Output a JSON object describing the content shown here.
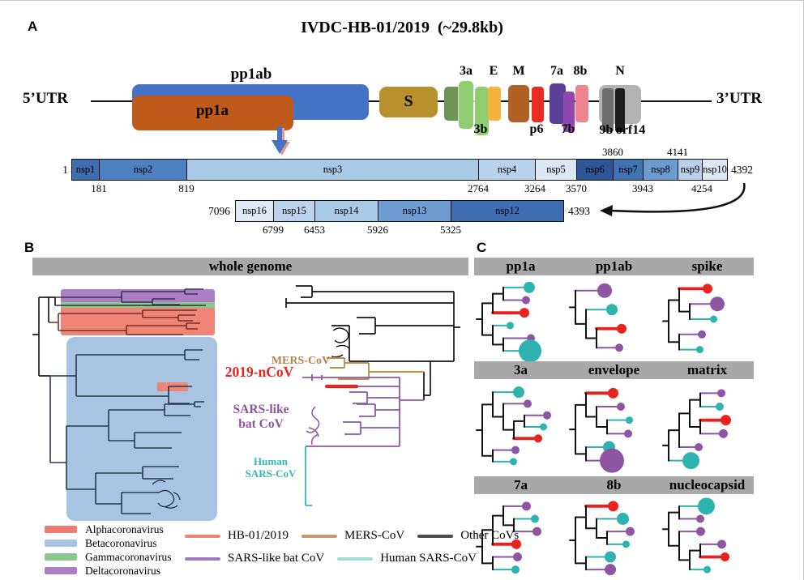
{
  "colors": {
    "header_bar": "#a8a8a8",
    "tips": {
      "teal": "#2fb3b1",
      "purple": "#8e55a3",
      "red": "#e8231d"
    },
    "pp1ab": "#4472c4",
    "pp1a": "#c05a1a",
    "spike_s": "#b8912f",
    "orf3": "#6d9455",
    "orf3ab_green": "#90cd70",
    "envelope_e": "#f5b33d",
    "membrane_m": "#b05f25",
    "p6": "#e82b23",
    "orf7a": "#5c3f99",
    "orf7b": "#9146ad",
    "orf8b": "#ee8490",
    "n_box": "#b3b3b3",
    "orf9b": "#6e6e6e",
    "orf14": "#1c1c1c",
    "nsp_row1": [
      "#3f6db2",
      "#4c80c0",
      "#a9c9e8",
      "#b9d1ec",
      "#dce8f6",
      "#2e5697",
      "#4072b4",
      "#6d9ad0",
      "#b9cfe9",
      "#dde9f6"
    ],
    "nsp_row2": [
      "#dfeaf6",
      "#bdd3ec",
      "#a9c9e8",
      "#6f9cd2",
      "#3e6db2"
    ],
    "mers_tan": "#b5834b",
    "ncov_red": "#e8231d",
    "sars_bat_purple": "#8e55a3",
    "human_sars_teal": "#35b8b5",
    "alpha": "#ef7b72",
    "beta": "#a9c4e2",
    "gamma": "#8cc88e",
    "delta": "#aa7fc4"
  },
  "panel_a": {
    "label": "A",
    "title": "IVDC-HB-01/2019  (~29.8kb)",
    "utr5": "5’UTR",
    "utr3": "3’UTR",
    "pp1ab": "pp1ab",
    "pp1a": "pp1a",
    "s": "S",
    "orfs_above": {
      "a3a": "3a",
      "e": "E",
      "m": "M",
      "a7a": "7a",
      "a8b": "8b",
      "n": "N"
    },
    "orfs_below": {
      "b3b": "3b",
      "p6": "p6",
      "b7b": "7b",
      "b9b": "9b",
      "orf14": "orf14"
    },
    "row1": {
      "start": "1",
      "end": "4392",
      "boxes": [
        "nsp1",
        "nsp2",
        "nsp3",
        "nsp4",
        "nsp5",
        "nsp6",
        "nsp7",
        "nsp8",
        "nsp9",
        "nsp10"
      ],
      "ticks_below": [
        "181",
        "819",
        "2764",
        "3264",
        "3570",
        "3943",
        "4254"
      ],
      "ticks_above": [
        "3860",
        "4141"
      ]
    },
    "row2": {
      "start": "7096",
      "end": "4393",
      "boxes": [
        "nsp16",
        "nsp15",
        "nsp14",
        "nsp13",
        "nsp12"
      ],
      "ticks_below": [
        "6799",
        "6453",
        "5926",
        "5325"
      ]
    }
  },
  "panel_b": {
    "label": "B",
    "header": "whole genome",
    "clade_labels": {
      "mers": "MERS-CoV",
      "ncov": "2019-nCoV",
      "sars_bat_1": "SARS-like",
      "sars_bat_2": "bat CoV",
      "human_1": "Human",
      "human_2": "SARS-CoV"
    },
    "legend_taxa": [
      {
        "label": "Alphacoronavirus",
        "color": "#ef7b72"
      },
      {
        "label": "Betacoronavirus",
        "color": "#a9c4e2"
      },
      {
        "label": "Gammacoronavirus",
        "color": "#8cc88e"
      },
      {
        "label": "Deltacoronavirus",
        "color": "#aa7fc4"
      }
    ],
    "legend_lines": [
      {
        "label": "HB-01/2019",
        "color": "#ef8577"
      },
      {
        "label": "MERS-CoV",
        "color": "#c59975"
      },
      {
        "label": "Other CoVs",
        "color": "#4d4d4d"
      },
      {
        "label": "SARS-like bat CoV",
        "color": "#9b7cc0"
      },
      {
        "label": "Human SARS-CoV",
        "color": "#9fdcd8"
      }
    ]
  },
  "panel_c": {
    "label": "C",
    "sections": [
      {
        "headers": [
          "pp1a",
          "pp1ab",
          "spike"
        ]
      },
      {
        "headers": [
          "3a",
          "envelope",
          "matrix"
        ]
      },
      {
        "headers": [
          "7a",
          "8b",
          "nucleocapsid"
        ]
      }
    ],
    "trees": {
      "pp1a": [
        [
          [
            {
              "c": "teal",
              "r": 7,
              "len": 26
            },
            {
              "c": "purple",
              "r": 5,
              "len": 24
            }
          ],
          {
            "c": "red",
            "r": 6,
            "b": true,
            "len": 34
          }
        ],
        [
          {
            "c": "teal",
            "r": 4.5,
            "len": 18
          },
          [
            {
              "c": "purple",
              "r": 5,
              "len": 30
            },
            {
              "c": "teal",
              "r": 14,
              "len": 20
            }
          ]
        ]
      ],
      "pp1ab": [
        {
          "c": "purple",
          "r": 9,
          "len": 28
        },
        [
          {
            "c": "teal",
            "r": 7,
            "len": 26
          },
          [
            {
              "c": "red",
              "r": 6,
              "b": true,
              "len": 26
            },
            {
              "c": "purple",
              "r": 5,
              "len": 24
            }
          ]
        ]
      ],
      "spike": [
        [
          {
            "c": "red",
            "r": 6,
            "b": true,
            "len": 30
          },
          [
            {
              "c": "purple",
              "r": 9,
              "len": 26
            },
            {
              "c": "teal",
              "r": 4.5,
              "len": 26
            }
          ]
        ],
        [
          {
            "c": "purple",
            "r": 5,
            "len": 24
          },
          {
            "c": "teal",
            "r": 4.5,
            "len": 22
          }
        ]
      ],
      "3a": [
        [
          {
            "c": "teal",
            "r": 7,
            "len": 26
          },
          [
            {
              "c": "purple",
              "r": 5,
              "len": 26
            },
            [
              [
                {
                  "c": "purple",
                  "r": 5,
                  "len": 24
                },
                {
                  "c": "teal",
                  "r": 4.5,
                  "len": 20
                }
              ],
              {
                "c": "red",
                "r": 5,
                "b": true,
                "len": 26
              }
            ]
          ]
        ],
        [
          {
            "c": "purple",
            "r": 5,
            "len": 24
          },
          {
            "c": "teal",
            "r": 4.5,
            "len": 22
          }
        ]
      ],
      "envelope": [
        [
          {
            "c": "red",
            "r": 6.5,
            "b": true,
            "len": 28
          },
          [
            {
              "c": "purple",
              "r": 5,
              "len": 26
            },
            [
              {
                "c": "teal",
                "r": 4.5,
                "len": 24
              },
              {
                "c": "purple",
                "r": 5,
                "len": 22
              }
            ]
          ]
        ],
        [
          {
            "c": "teal",
            "r": 7.5,
            "len": 22
          },
          {
            "c": "purple",
            "r": 15,
            "len": 18
          }
        ]
      ],
      "matrix": [
        [
          [
            [
              {
                "c": "purple",
                "r": 5,
                "len": 22
              },
              {
                "c": "teal",
                "r": 5,
                "len": 20
              }
            ],
            [
              {
                "c": "red",
                "r": 6.5,
                "b": true,
                "len": 26
              },
              {
                "c": "purple",
                "r": 5.5,
                "len": 24
              }
            ]
          ],
          {
            "c": "purple",
            "r": 5,
            "len": 20
          }
        ],
        {
          "c": "teal",
          "r": 10.5,
          "len": 18
        }
      ],
      "7a": [
        [
          [
            {
              "c": "purple",
              "r": 5.5,
              "len": 24
            },
            [
              {
                "c": "teal",
                "r": 5,
                "len": 22
              },
              {
                "c": "purple",
                "r": 5.5,
                "len": 24
              }
            ]
          ],
          {
            "c": "red",
            "r": 6,
            "b": true,
            "len": 24
          }
        ],
        [
          {
            "c": "purple",
            "r": 5.5,
            "len": 26
          },
          {
            "c": "teal",
            "r": 5,
            "len": 24
          }
        ]
      ],
      "8b": [
        [
          {
            "c": "red",
            "r": 6.5,
            "b": true,
            "len": 28
          },
          [
            {
              "c": "teal",
              "r": 7.5,
              "len": 26
            },
            [
              {
                "c": "purple",
                "r": 5.5,
                "len": 24
              },
              {
                "c": "teal",
                "r": 4.5,
                "len": 20
              }
            ]
          ]
        ],
        [
          {
            "c": "teal",
            "r": 7,
            "len": 24
          },
          {
            "c": "purple",
            "r": 7,
            "len": 24
          }
        ]
      ],
      "nucleocapsid": [
        [
          {
            "c": "teal",
            "r": 10.5,
            "len": 24
          },
          {
            "c": "purple",
            "r": 5,
            "len": 22
          }
        ],
        [
          {
            "c": "purple",
            "r": 5.5,
            "len": 22
          },
          [
            [
              {
                "c": "purple",
                "r": 5.5,
                "len": 22
              },
              {
                "c": "red",
                "r": 5.5,
                "b": true,
                "len": 26
              }
            ],
            {
              "c": "teal",
              "r": 4.5,
              "len": 18
            }
          ]
        ]
      ]
    }
  }
}
